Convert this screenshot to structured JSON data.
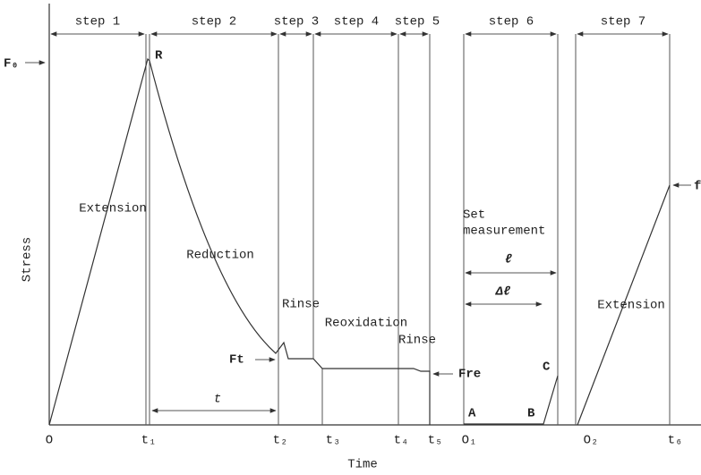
{
  "steps": [
    "step 1",
    "step 2",
    "step 3",
    "step 4",
    "step 5",
    "step 6",
    "step 7"
  ],
  "y_axis_label": "Stress",
  "x_axis_label": "Time",
  "x_labels": [
    "O",
    "t₁",
    "t₂",
    "t₃",
    "t₄",
    "t₅",
    "O₁",
    "O₂",
    "t₆"
  ],
  "markers": {
    "f0": "F₀",
    "r": "R",
    "ft": "Ft",
    "fre": "Fre",
    "f": "f",
    "t": "t",
    "a": "A",
    "b": "B",
    "c": "C",
    "l": "ℓ",
    "dl": "Δℓ"
  },
  "phases": {
    "extension1": "Extension",
    "reduction": "Reduction",
    "rinse1": "Rinse",
    "reoxidation": "Reoxidation",
    "rinse2": "Rinse",
    "set_measurement": [
      "Set",
      "measurement"
    ],
    "extension2": "Extension"
  }
}
